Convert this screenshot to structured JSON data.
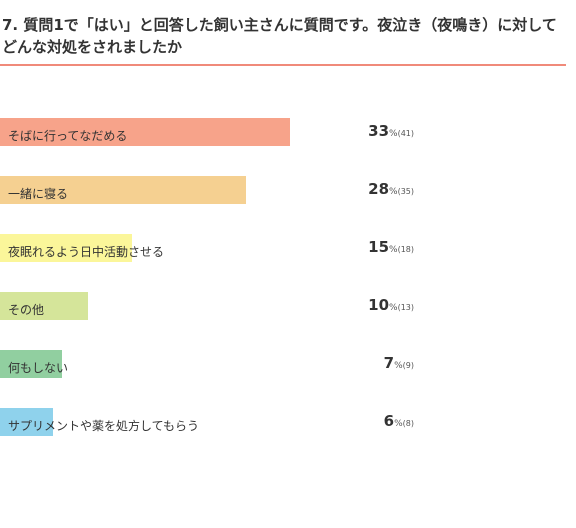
{
  "chart_data": {
    "type": "bar",
    "orientation": "horizontal",
    "title": "7. 質問1で「はい」と回答した飼い主さんに質問です。夜泣き（夜鳴き）に対してどんな対処をされましたか",
    "categories": [
      "そばに行ってなだめる",
      "一緒に寝る",
      "夜眠れるよう日中活動させる",
      "その他",
      "何もしない",
      "サプリメントや薬を処方してもらう"
    ],
    "values": [
      33,
      28,
      15,
      10,
      7,
      6
    ],
    "counts": [
      41,
      35,
      18,
      13,
      9,
      8
    ],
    "percent_unit": "%",
    "count_format": "({n})",
    "colors": [
      "#f7a38a",
      "#f5d091",
      "#fbf69a",
      "#d5e59a",
      "#91cfa0",
      "#8fd2ec"
    ],
    "xlim": [
      0,
      100
    ],
    "grid": false,
    "legend": "none"
  }
}
